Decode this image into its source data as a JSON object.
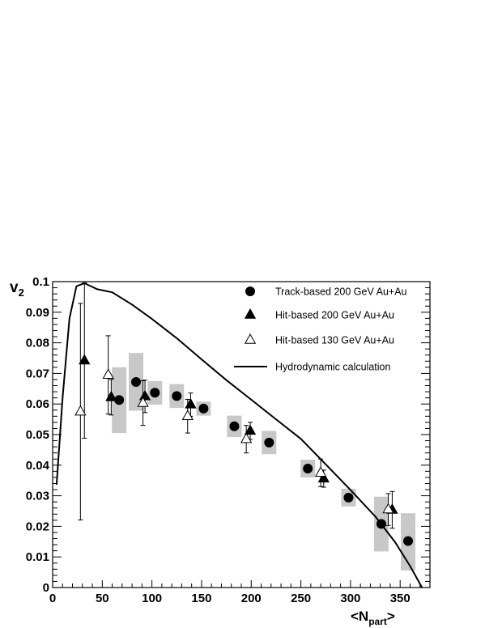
{
  "chart_data": {
    "type": "scatter",
    "xlabel": "<N_part>",
    "ylabel": "v_2",
    "xlim": [
      0,
      380
    ],
    "ylim": [
      0,
      0.1
    ],
    "x_ticks": [
      "0",
      "50",
      "100",
      "150",
      "200",
      "250",
      "300",
      "350"
    ],
    "y_ticks": [
      "0",
      "0.01",
      "0.02",
      "0.03",
      "0.04",
      "0.05",
      "0.06",
      "0.07",
      "0.08",
      "0.09",
      "0.1"
    ],
    "grid": false,
    "legend_position": "top-right",
    "series": [
      {
        "name": "Track-based 200 GeV Au+Au",
        "marker": "filled-circle",
        "points": [
          {
            "x": 67,
            "y": 0.0613,
            "sys_lo": 0.0505,
            "sys_hi": 0.072
          },
          {
            "x": 84,
            "y": 0.0672,
            "sys_lo": 0.0578,
            "sys_hi": 0.0767
          },
          {
            "x": 103,
            "y": 0.0637,
            "sys_lo": 0.0598,
            "sys_hi": 0.0675
          },
          {
            "x": 125,
            "y": 0.0626,
            "sys_lo": 0.0587,
            "sys_hi": 0.0665
          },
          {
            "x": 152,
            "y": 0.0585,
            "sys_lo": 0.0562,
            "sys_hi": 0.0608
          },
          {
            "x": 183,
            "y": 0.0527,
            "sys_lo": 0.0492,
            "sys_hi": 0.0562
          },
          {
            "x": 218,
            "y": 0.0474,
            "sys_lo": 0.0436,
            "sys_hi": 0.0512
          },
          {
            "x": 257,
            "y": 0.0389,
            "sys_lo": 0.036,
            "sys_hi": 0.0418
          },
          {
            "x": 298,
            "y": 0.0294,
            "sys_lo": 0.0265,
            "sys_hi": 0.0323
          },
          {
            "x": 331,
            "y": 0.0208,
            "sys_lo": 0.0118,
            "sys_hi": 0.0297
          },
          {
            "x": 358,
            "y": 0.0152,
            "sys_lo": 0.0056,
            "sys_hi": 0.0243
          }
        ]
      },
      {
        "name": "Hit-based 200 GeV Au+Au",
        "marker": "filled-triangle",
        "points": [
          {
            "x": 32,
            "y": 0.0742,
            "err": 0.0254
          },
          {
            "x": 59,
            "y": 0.0622,
            "err": 0.0058
          },
          {
            "x": 93,
            "y": 0.0625,
            "err": 0.0053
          },
          {
            "x": 139,
            "y": 0.0598,
            "err": 0.0038
          },
          {
            "x": 199,
            "y": 0.0512,
            "err": 0.0028
          },
          {
            "x": 273,
            "y": 0.0356,
            "err": 0.0028
          },
          {
            "x": 342,
            "y": 0.0254,
            "err": 0.006
          }
        ]
      },
      {
        "name": "Hit-based 130 GeV Au+Au",
        "marker": "open-triangle",
        "points": [
          {
            "x": 28,
            "y": 0.0575,
            "err": 0.0354
          },
          {
            "x": 56,
            "y": 0.0695,
            "err": 0.0128
          },
          {
            "x": 91,
            "y": 0.0603,
            "err": 0.0073
          },
          {
            "x": 136,
            "y": 0.056,
            "err": 0.0055
          },
          {
            "x": 195,
            "y": 0.0485,
            "err": 0.0045
          },
          {
            "x": 270,
            "y": 0.0375,
            "err": 0.0045
          },
          {
            "x": 338,
            "y": 0.0255,
            "err": 0.0052
          }
        ]
      },
      {
        "name": "Hydrodynamic calculation",
        "marker": "line",
        "points": [
          {
            "x": 4,
            "y": 0.0336
          },
          {
            "x": 10,
            "y": 0.062
          },
          {
            "x": 17,
            "y": 0.088
          },
          {
            "x": 24,
            "y": 0.0985
          },
          {
            "x": 32,
            "y": 0.0995
          },
          {
            "x": 45,
            "y": 0.0975
          },
          {
            "x": 60,
            "y": 0.0965
          },
          {
            "x": 80,
            "y": 0.0925
          },
          {
            "x": 100,
            "y": 0.0878
          },
          {
            "x": 125,
            "y": 0.0815
          },
          {
            "x": 150,
            "y": 0.0746
          },
          {
            "x": 175,
            "y": 0.0678
          },
          {
            "x": 200,
            "y": 0.0614
          },
          {
            "x": 225,
            "y": 0.055
          },
          {
            "x": 250,
            "y": 0.0486
          },
          {
            "x": 275,
            "y": 0.0403
          },
          {
            "x": 300,
            "y": 0.0319
          },
          {
            "x": 325,
            "y": 0.0232
          },
          {
            "x": 345,
            "y": 0.0148
          },
          {
            "x": 360,
            "y": 0.007
          },
          {
            "x": 372,
            "y": 0.0
          }
        ]
      }
    ]
  }
}
